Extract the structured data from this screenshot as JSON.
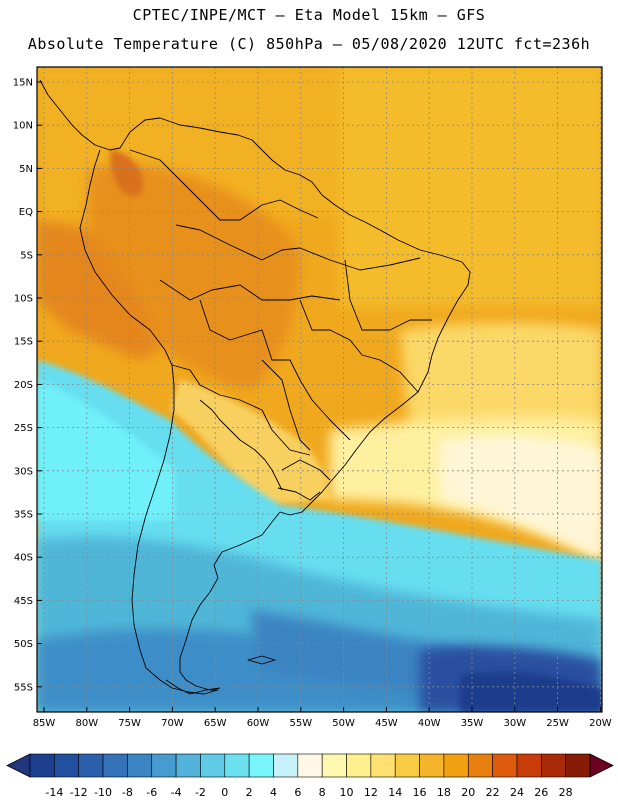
{
  "header": {
    "line1": "CPTEC/INPE/MCT –  Eta Model 15km – GFS",
    "line2": "Absolute Temperature (C) 850hPa – 05/08/2020 12UTC fct=236h"
  },
  "map": {
    "lat_labels": [
      "15N",
      "10N",
      "5N",
      "EQ",
      "5S",
      "10S",
      "15S",
      "20S",
      "25S",
      "30S",
      "35S",
      "40S",
      "45S",
      "50S",
      "55S"
    ],
    "lon_labels": [
      "85W",
      "80W",
      "75W",
      "70W",
      "65W",
      "60W",
      "55W",
      "50W",
      "45W",
      "40W",
      "35W",
      "30W",
      "25W",
      "20W"
    ]
  },
  "colorbar": {
    "labels": [
      "-14",
      "-12",
      "-10",
      "-8",
      "-6",
      "-4",
      "-2",
      "0",
      "2",
      "4",
      "6",
      "8",
      "10",
      "12",
      "14",
      "16",
      "18",
      "20",
      "22",
      "24",
      "26",
      "28"
    ],
    "colors": [
      "#1c3f8f",
      "#23509e",
      "#2b5fab",
      "#3371b8",
      "#3b85c4",
      "#479ccf",
      "#54b3da",
      "#5fcbe6",
      "#6be0ef",
      "#78f6fb",
      "#c8f2fb",
      "#fff8e6",
      "#fff8b0",
      "#fff08e",
      "#ffe070",
      "#f8cb45",
      "#f4b52a",
      "#f0a010",
      "#e8800f",
      "#de5a0c",
      "#c83c0a",
      "#a82a08",
      "#861c05"
    ],
    "low_arrow_color": "#22357f",
    "high_arrow_color": "#6a0022"
  }
}
